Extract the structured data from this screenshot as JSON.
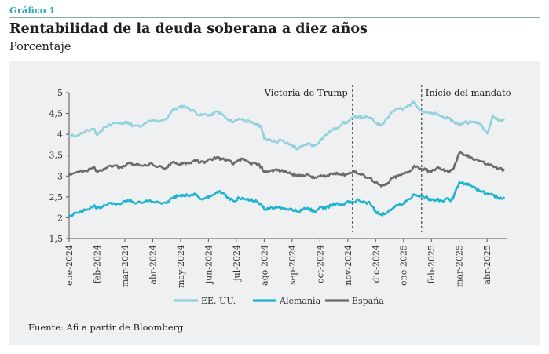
{
  "header": {
    "kicker": "Gráfico 1",
    "title": "Rentabilidad de la deuda soberana a diez años",
    "subtitle": "Porcentaje"
  },
  "source": "Fuente: Afi a partir de Bloomberg.",
  "colors": {
    "us": "#92d2dc",
    "de": "#1fb3d1",
    "es": "#6b6b6b",
    "panel_bg": "#eef0f1",
    "kicker": "#2aa7b8"
  },
  "chart_data": {
    "type": "line",
    "title": "Rentabilidad de la deuda soberana a diez años",
    "subtitle": "Porcentaje",
    "ylim": [
      1.5,
      5
    ],
    "yticks": [
      "5",
      "4,5",
      "4",
      "3,5",
      "3",
      "2,5",
      "2",
      "1,5"
    ],
    "ytick_values": [
      5,
      4.5,
      4,
      3.5,
      3,
      2.5,
      2,
      1.5
    ],
    "xticks": [
      "ene-2024",
      "feb-2024",
      "mar-2024",
      "abr-2024",
      "may-2024",
      "jun-2024",
      "jul-2024",
      "ago-2024",
      "sep-2024",
      "oct-2024",
      "nov-2024",
      "dic-2024",
      "ene-2025",
      "feb-2025",
      "mar-2025",
      "abr-2025"
    ],
    "xlim": [
      0,
      15.7
    ],
    "grid": false,
    "legend_position": "bottom",
    "annotations": [
      {
        "label": "Victoria de Trump",
        "x": 10.17
      },
      {
        "label": "Inicio del mandato",
        "x": 12.65
      }
    ],
    "series": [
      {
        "name": "EE. UU.",
        "key": "us",
        "x": [
          0,
          0.3,
          0.6,
          0.9,
          1.0,
          1.3,
          1.6,
          1.9,
          2.1,
          2.3,
          2.6,
          2.9,
          3.2,
          3.5,
          3.7,
          3.9,
          4.1,
          4.3,
          4.5,
          4.7,
          4.9,
          5.1,
          5.3,
          5.5,
          5.7,
          5.9,
          6.1,
          6.3,
          6.5,
          6.7,
          6.9,
          7.0,
          7.2,
          7.4,
          7.6,
          7.8,
          8.0,
          8.2,
          8.4,
          8.6,
          8.8,
          9.0,
          9.2,
          9.4,
          9.6,
          9.8,
          10.0,
          10.2,
          10.4,
          10.6,
          10.8,
          11.0,
          11.2,
          11.4,
          11.6,
          11.8,
          12.0,
          12.2,
          12.4,
          12.6,
          12.8,
          13.0,
          13.2,
          13.4,
          13.6,
          13.8,
          14.0,
          14.2,
          14.4,
          14.6,
          14.8,
          15.0,
          15.2,
          15.4,
          15.6
        ],
        "values": [
          3.95,
          3.98,
          4.08,
          4.12,
          3.98,
          4.18,
          4.28,
          4.25,
          4.3,
          4.2,
          4.19,
          4.33,
          4.3,
          4.38,
          4.58,
          4.63,
          4.68,
          4.62,
          4.55,
          4.45,
          4.48,
          4.45,
          4.55,
          4.48,
          4.34,
          4.3,
          4.38,
          4.34,
          4.28,
          4.25,
          4.18,
          3.9,
          3.88,
          3.82,
          3.86,
          3.78,
          3.74,
          3.65,
          3.72,
          3.78,
          3.72,
          3.85,
          3.98,
          4.08,
          4.15,
          4.26,
          4.3,
          4.4,
          4.43,
          4.4,
          4.4,
          4.28,
          4.22,
          4.38,
          4.55,
          4.62,
          4.6,
          4.7,
          4.78,
          4.58,
          4.52,
          4.5,
          4.48,
          4.42,
          4.38,
          4.3,
          4.22,
          4.3,
          4.28,
          4.3,
          4.22,
          4.02,
          4.45,
          4.33,
          4.35
        ]
      },
      {
        "name": "Alemania",
        "key": "de",
        "x": [
          0,
          0.3,
          0.6,
          0.9,
          1.0,
          1.3,
          1.6,
          1.9,
          2.1,
          2.3,
          2.6,
          2.9,
          3.2,
          3.5,
          3.7,
          3.9,
          4.1,
          4.3,
          4.5,
          4.7,
          4.9,
          5.1,
          5.3,
          5.5,
          5.7,
          5.9,
          6.1,
          6.3,
          6.5,
          6.7,
          6.9,
          7.0,
          7.2,
          7.4,
          7.6,
          7.8,
          8.0,
          8.2,
          8.4,
          8.6,
          8.8,
          9.0,
          9.2,
          9.4,
          9.6,
          9.8,
          10.0,
          10.2,
          10.4,
          10.6,
          10.8,
          11.0,
          11.2,
          11.4,
          11.6,
          11.8,
          12.0,
          12.2,
          12.4,
          12.6,
          12.8,
          13.0,
          13.2,
          13.4,
          13.6,
          13.7,
          13.8,
          14.0,
          14.2,
          14.4,
          14.6,
          14.8,
          15.0,
          15.2,
          15.4,
          15.6
        ],
        "values": [
          2.05,
          2.12,
          2.18,
          2.3,
          2.22,
          2.3,
          2.35,
          2.35,
          2.42,
          2.38,
          2.35,
          2.42,
          2.38,
          2.35,
          2.48,
          2.52,
          2.55,
          2.52,
          2.58,
          2.45,
          2.48,
          2.52,
          2.62,
          2.6,
          2.48,
          2.4,
          2.48,
          2.45,
          2.42,
          2.42,
          2.32,
          2.2,
          2.22,
          2.25,
          2.22,
          2.2,
          2.2,
          2.15,
          2.2,
          2.22,
          2.15,
          2.25,
          2.22,
          2.3,
          2.35,
          2.3,
          2.4,
          2.38,
          2.42,
          2.38,
          2.35,
          2.15,
          2.07,
          2.12,
          2.22,
          2.3,
          2.35,
          2.45,
          2.55,
          2.52,
          2.5,
          2.42,
          2.45,
          2.4,
          2.45,
          2.4,
          2.5,
          2.85,
          2.82,
          2.78,
          2.7,
          2.62,
          2.58,
          2.55,
          2.48,
          2.48
        ]
      },
      {
        "name": "España",
        "key": "es",
        "x": [
          0,
          0.3,
          0.6,
          0.9,
          1.0,
          1.3,
          1.6,
          1.9,
          2.1,
          2.3,
          2.6,
          2.9,
          3.2,
          3.5,
          3.7,
          3.9,
          4.1,
          4.3,
          4.5,
          4.7,
          4.9,
          5.1,
          5.3,
          5.5,
          5.7,
          5.9,
          6.1,
          6.3,
          6.5,
          6.7,
          6.9,
          7.0,
          7.2,
          7.4,
          7.6,
          7.8,
          8.0,
          8.2,
          8.4,
          8.6,
          8.8,
          9.0,
          9.2,
          9.4,
          9.6,
          9.8,
          10.0,
          10.2,
          10.4,
          10.6,
          10.8,
          11.0,
          11.2,
          11.4,
          11.6,
          11.8,
          12.0,
          12.2,
          12.4,
          12.6,
          12.8,
          13.0,
          13.2,
          13.4,
          13.6,
          13.7,
          13.8,
          14.0,
          14.2,
          14.4,
          14.6,
          14.8,
          15.0,
          15.2,
          15.4,
          15.6
        ],
        "values": [
          3.05,
          3.1,
          3.12,
          3.22,
          3.1,
          3.18,
          3.25,
          3.2,
          3.3,
          3.28,
          3.25,
          3.3,
          3.22,
          3.2,
          3.32,
          3.28,
          3.32,
          3.3,
          3.38,
          3.32,
          3.35,
          3.4,
          3.45,
          3.4,
          3.38,
          3.28,
          3.4,
          3.38,
          3.3,
          3.3,
          3.22,
          3.1,
          3.12,
          3.15,
          3.12,
          3.1,
          3.05,
          3.0,
          3.02,
          3.02,
          2.95,
          3.0,
          2.98,
          3.05,
          3.08,
          3.03,
          3.05,
          3.12,
          3.05,
          3.0,
          2.95,
          2.85,
          2.75,
          2.8,
          2.95,
          3.0,
          3.05,
          3.1,
          3.25,
          3.18,
          3.15,
          3.1,
          3.2,
          3.15,
          3.1,
          3.15,
          3.18,
          3.55,
          3.5,
          3.45,
          3.4,
          3.35,
          3.28,
          3.25,
          3.18,
          3.15
        ]
      }
    ]
  }
}
